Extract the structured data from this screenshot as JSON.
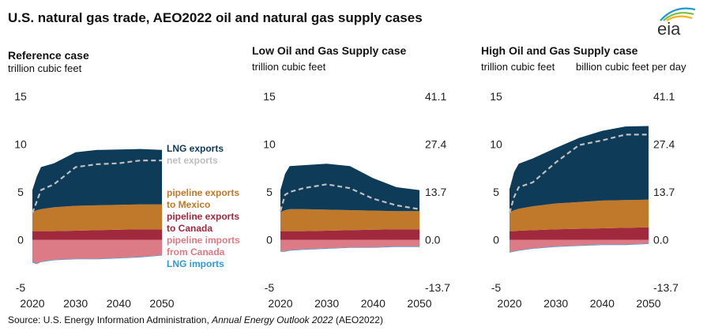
{
  "title": "U.S. natural gas trade, AEO2022 oil and natural gas supply cases",
  "logo_text": "eia",
  "source": {
    "prefix": "Source: U.S. Energy Information Administration, ",
    "italic": "Annual Energy Outlook 2022",
    "suffix": " (AEO2022)"
  },
  "colors": {
    "lng_exports": "#0d3b58",
    "pipeline_exports_mexico": "#c0782b",
    "pipeline_exports_canada": "#a0293e",
    "pipeline_imports_canada": "#dc7b85",
    "lng_imports": "#2e9bd9",
    "net_exports": "#bfbfbf"
  },
  "legend": {
    "lng_exports": "LNG exports",
    "net_exports": "net exports",
    "mexico_1": "pipeline exports",
    "mexico_2": "to Mexico",
    "canada_1": "pipeline exports",
    "canada_2": "to Canada",
    "imports_1": "pipeline imports",
    "imports_2": "from Canada",
    "lng_imports": "LNG imports"
  },
  "panels": [
    {
      "title": "Reference case",
      "unit_left": "trillion cubic feet",
      "unit_right": ""
    },
    {
      "title": "Low Oil and Gas Supply case",
      "unit_left": "trillion cubic feet",
      "unit_right": ""
    },
    {
      "title": "High Oil and Gas Supply case",
      "unit_left": "trillion cubic feet",
      "unit_right": "billion cubic feet per day"
    }
  ],
  "chart_data": [
    {
      "type": "area",
      "title": "Reference case",
      "ylabel": "trillion cubic feet",
      "ylim": [
        -5,
        15
      ],
      "yticks": [
        -5,
        0,
        5,
        10,
        15
      ],
      "xlim": [
        2020,
        2050
      ],
      "xticks": [
        2020,
        2030,
        2040,
        2050
      ],
      "x": [
        2020,
        2021,
        2022,
        2025,
        2030,
        2035,
        2040,
        2045,
        2050
      ],
      "series": [
        {
          "name": "pipeline exports to Canada",
          "values": [
            0.9,
            0.9,
            0.9,
            0.9,
            0.95,
            1.0,
            1.05,
            1.1,
            1.1
          ]
        },
        {
          "name": "pipeline exports to Mexico",
          "values": [
            2.0,
            2.2,
            2.3,
            2.5,
            2.6,
            2.6,
            2.6,
            2.6,
            2.6
          ]
        },
        {
          "name": "LNG exports",
          "values": [
            2.3,
            3.5,
            4.4,
            4.6,
            5.6,
            5.8,
            5.8,
            5.8,
            5.7
          ]
        },
        {
          "name": "pipeline imports from Canada",
          "values": [
            -2.3,
            -2.5,
            -2.3,
            -2.1,
            -2.0,
            -2.0,
            -1.9,
            -1.8,
            -1.6
          ]
        },
        {
          "name": "LNG imports",
          "values": [
            -0.1,
            -0.05,
            -0.05,
            -0.05,
            -0.05,
            -0.05,
            -0.05,
            -0.05,
            -0.05
          ]
        },
        {
          "name": "net exports",
          "values": [
            2.8,
            4.0,
            5.2,
            5.8,
            7.6,
            7.9,
            8.0,
            8.3,
            8.3
          ]
        }
      ]
    },
    {
      "type": "area",
      "title": "Low Oil and Gas Supply case",
      "ylabel": "trillion cubic feet",
      "ylim": [
        -5,
        15
      ],
      "yticks": [
        -5,
        0,
        5,
        10,
        15
      ],
      "yticks_right": [
        "-13.7",
        "0.0",
        "13.7",
        "27.4",
        "41.1"
      ],
      "xlim": [
        2020,
        2050
      ],
      "xticks": [
        2020,
        2030,
        2040,
        2050
      ],
      "x": [
        2020,
        2021,
        2022,
        2025,
        2030,
        2035,
        2040,
        2045,
        2050
      ],
      "series": [
        {
          "name": "pipeline exports to Canada",
          "values": [
            0.9,
            0.9,
            0.9,
            0.9,
            0.95,
            1.0,
            1.05,
            1.1,
            1.1
          ]
        },
        {
          "name": "pipeline exports to Mexico",
          "values": [
            2.0,
            2.2,
            2.3,
            2.3,
            2.2,
            2.1,
            2.0,
            1.9,
            1.9
          ]
        },
        {
          "name": "LNG exports",
          "values": [
            2.3,
            3.8,
            4.5,
            4.6,
            4.8,
            4.6,
            3.4,
            2.5,
            2.2
          ]
        },
        {
          "name": "pipeline imports from Canada",
          "values": [
            -1.2,
            -1.2,
            -1.1,
            -1.0,
            -0.9,
            -0.8,
            -0.8,
            -0.7,
            -0.7
          ]
        },
        {
          "name": "LNG imports",
          "values": [
            -0.05,
            -0.05,
            -0.05,
            -0.05,
            -0.05,
            -0.05,
            -0.05,
            -0.05,
            -0.05
          ]
        },
        {
          "name": "net exports",
          "values": [
            3.0,
            4.7,
            5.0,
            5.4,
            5.8,
            5.4,
            4.3,
            3.6,
            3.2
          ]
        }
      ]
    },
    {
      "type": "area",
      "title": "High Oil and Gas Supply case",
      "ylabel": "trillion cubic feet",
      "ylabel_right": "billion cubic feet per day",
      "ylim": [
        -5,
        15
      ],
      "yticks": [
        -5,
        0,
        5,
        10,
        15
      ],
      "yticks_right": [
        "-13.7",
        "0.0",
        "13.7",
        "27.4",
        "41.1"
      ],
      "xlim": [
        2020,
        2050
      ],
      "xticks": [
        2020,
        2030,
        2040,
        2050
      ],
      "x": [
        2020,
        2021,
        2022,
        2025,
        2030,
        2035,
        2040,
        2045,
        2050
      ],
      "series": [
        {
          "name": "pipeline exports to Canada",
          "values": [
            0.9,
            0.9,
            0.95,
            1.0,
            1.1,
            1.15,
            1.2,
            1.25,
            1.3
          ]
        },
        {
          "name": "pipeline exports to Mexico",
          "values": [
            2.0,
            2.2,
            2.3,
            2.5,
            2.7,
            2.8,
            2.9,
            2.9,
            2.9
          ]
        },
        {
          "name": "LNG exports",
          "values": [
            2.4,
            4.0,
            4.7,
            5.0,
            5.8,
            6.7,
            7.3,
            7.7,
            7.7
          ]
        },
        {
          "name": "pipeline imports from Canada",
          "values": [
            -1.3,
            -1.2,
            -1.1,
            -0.9,
            -0.7,
            -0.6,
            -0.5,
            -0.5,
            -0.4
          ]
        },
        {
          "name": "LNG imports",
          "values": [
            -0.05,
            -0.05,
            -0.05,
            -0.05,
            -0.05,
            -0.05,
            -0.05,
            -0.05,
            -0.05
          ]
        },
        {
          "name": "net exports",
          "values": [
            2.8,
            4.5,
            5.5,
            6.0,
            8.1,
            9.9,
            10.4,
            11.0,
            11.0
          ]
        }
      ]
    }
  ]
}
